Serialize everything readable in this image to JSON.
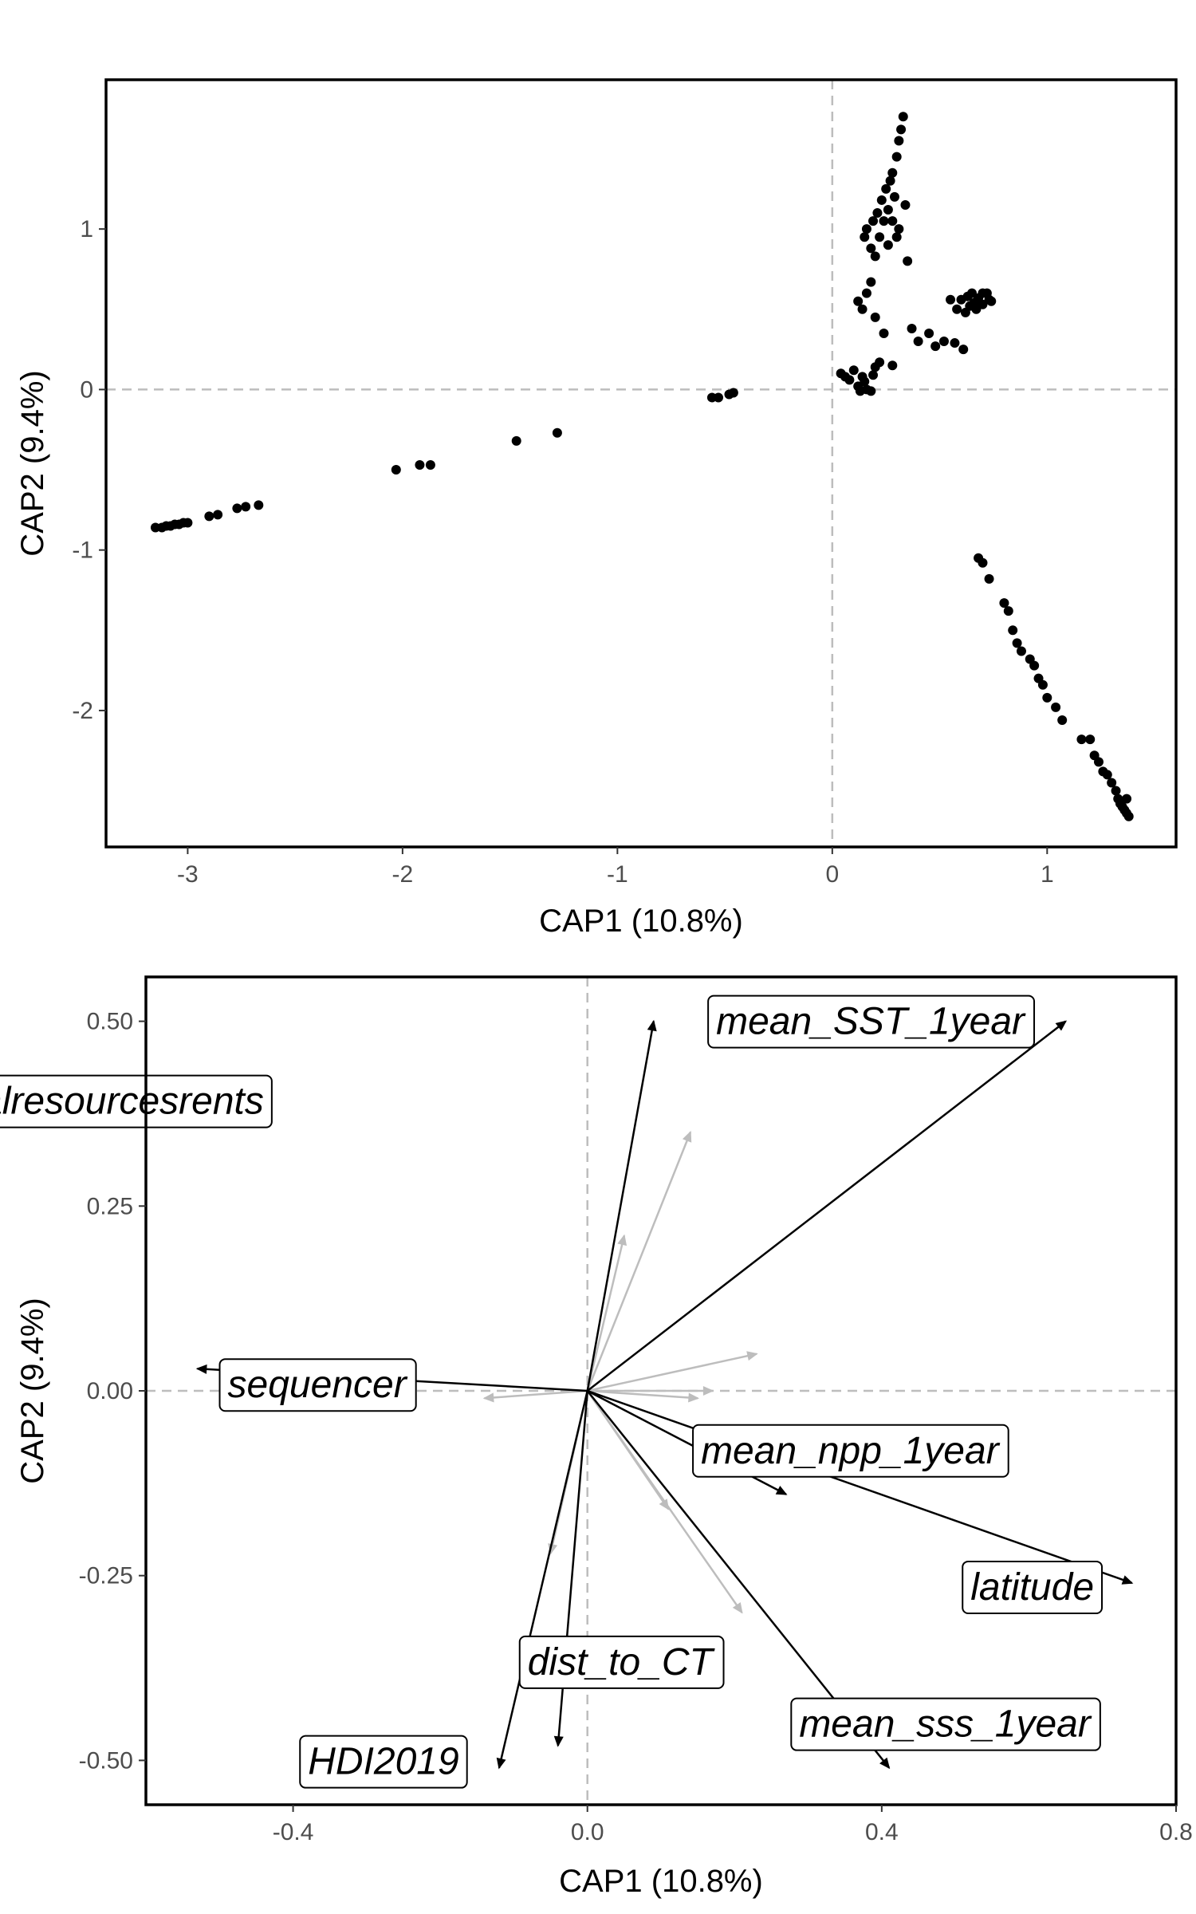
{
  "colors": {
    "points": "#000000",
    "panel_border": "#000000",
    "refline": "#bdbdbd",
    "label_bg": "#ffffff",
    "minor_arrow": "#bdbdbd",
    "major_arrow": "#000000",
    "tick_text": "#4d4d4d"
  },
  "chart_data": [
    {
      "type": "scatter",
      "xlabel": "CAP1 (10.8%)",
      "ylabel": "CAP2 (9.4%)",
      "xlim": [
        -3.38,
        1.6
      ],
      "ylim": [
        -2.85,
        1.93
      ],
      "xticks": [
        -3,
        -2,
        -1,
        0,
        1
      ],
      "yticks": [
        -2,
        -1,
        0,
        1
      ],
      "xtick_labels": [
        "-3",
        "-2",
        "-1",
        "0",
        "1"
      ],
      "ytick_labels": [
        "-2",
        "-1",
        "0",
        "1"
      ],
      "reference_lines": {
        "x": 0,
        "y": 0,
        "style": "dashed"
      },
      "grid": false,
      "points": [
        [
          -3.15,
          -0.86
        ],
        [
          -3.12,
          -0.86
        ],
        [
          -3.1,
          -0.85
        ],
        [
          -3.08,
          -0.85
        ],
        [
          -3.06,
          -0.84
        ],
        [
          -3.04,
          -0.84
        ],
        [
          -3.02,
          -0.83
        ],
        [
          -3.0,
          -0.83
        ],
        [
          -2.9,
          -0.79
        ],
        [
          -2.86,
          -0.78
        ],
        [
          -2.77,
          -0.74
        ],
        [
          -2.73,
          -0.73
        ],
        [
          -2.67,
          -0.72
        ],
        [
          -2.03,
          -0.5
        ],
        [
          -1.92,
          -0.47
        ],
        [
          -1.87,
          -0.47
        ],
        [
          -1.47,
          -0.32
        ],
        [
          -1.28,
          -0.27
        ],
        [
          -0.56,
          -0.05
        ],
        [
          -0.53,
          -0.05
        ],
        [
          -0.48,
          -0.03
        ],
        [
          -0.46,
          -0.02
        ],
        [
          0.04,
          0.1
        ],
        [
          0.06,
          0.08
        ],
        [
          0.08,
          0.06
        ],
        [
          0.1,
          0.12
        ],
        [
          0.12,
          0.02
        ],
        [
          0.13,
          -0.01
        ],
        [
          0.15,
          0.05
        ],
        [
          0.16,
          0.0
        ],
        [
          0.14,
          0.08
        ],
        [
          0.18,
          -0.01
        ],
        [
          0.2,
          0.14
        ],
        [
          0.22,
          0.17
        ],
        [
          0.19,
          0.09
        ],
        [
          0.12,
          0.55
        ],
        [
          0.14,
          0.5
        ],
        [
          0.16,
          0.6
        ],
        [
          0.18,
          0.67
        ],
        [
          0.2,
          0.45
        ],
        [
          0.24,
          0.35
        ],
        [
          0.28,
          0.15
        ],
        [
          0.15,
          0.95
        ],
        [
          0.16,
          1.0
        ],
        [
          0.18,
          0.88
        ],
        [
          0.19,
          1.05
        ],
        [
          0.2,
          0.83
        ],
        [
          0.21,
          1.1
        ],
        [
          0.22,
          0.95
        ],
        [
          0.23,
          1.18
        ],
        [
          0.24,
          1.05
        ],
        [
          0.25,
          1.25
        ],
        [
          0.26,
          1.12
        ],
        [
          0.27,
          1.3
        ],
        [
          0.28,
          1.35
        ],
        [
          0.29,
          1.2
        ],
        [
          0.3,
          1.45
        ],
        [
          0.31,
          1.55
        ],
        [
          0.32,
          1.62
        ],
        [
          0.33,
          1.7
        ],
        [
          0.3,
          0.95
        ],
        [
          0.28,
          1.05
        ],
        [
          0.26,
          0.9
        ],
        [
          0.34,
          1.15
        ],
        [
          0.35,
          0.8
        ],
        [
          0.31,
          1.0
        ],
        [
          0.37,
          0.38
        ],
        [
          0.4,
          0.3
        ],
        [
          0.45,
          0.35
        ],
        [
          0.48,
          0.27
        ],
        [
          0.52,
          0.3
        ],
        [
          0.57,
          0.29
        ],
        [
          0.61,
          0.25
        ],
        [
          0.55,
          0.56
        ],
        [
          0.58,
          0.5
        ],
        [
          0.6,
          0.56
        ],
        [
          0.62,
          0.48
        ],
        [
          0.63,
          0.58
        ],
        [
          0.64,
          0.52
        ],
        [
          0.65,
          0.6
        ],
        [
          0.66,
          0.54
        ],
        [
          0.67,
          0.5
        ],
        [
          0.68,
          0.57
        ],
        [
          0.7,
          0.53
        ],
        [
          0.72,
          0.6
        ],
        [
          0.73,
          0.56
        ],
        [
          0.74,
          0.55
        ],
        [
          0.7,
          0.6
        ],
        [
          0.68,
          -1.05
        ],
        [
          0.7,
          -1.08
        ],
        [
          0.73,
          -1.18
        ],
        [
          0.8,
          -1.33
        ],
        [
          0.82,
          -1.38
        ],
        [
          0.84,
          -1.5
        ],
        [
          0.86,
          -1.58
        ],
        [
          0.88,
          -1.63
        ],
        [
          0.92,
          -1.68
        ],
        [
          0.94,
          -1.72
        ],
        [
          0.96,
          -1.8
        ],
        [
          0.98,
          -1.84
        ],
        [
          1.0,
          -1.92
        ],
        [
          1.04,
          -1.98
        ],
        [
          1.07,
          -2.06
        ],
        [
          1.16,
          -2.18
        ],
        [
          1.2,
          -2.18
        ],
        [
          1.22,
          -2.28
        ],
        [
          1.24,
          -2.32
        ],
        [
          1.26,
          -2.38
        ],
        [
          1.28,
          -2.4
        ],
        [
          1.3,
          -2.45
        ],
        [
          1.32,
          -2.5
        ],
        [
          1.33,
          -2.55
        ],
        [
          1.34,
          -2.58
        ],
        [
          1.35,
          -2.6
        ],
        [
          1.36,
          -2.62
        ],
        [
          1.37,
          -2.64
        ],
        [
          1.38,
          -2.66
        ],
        [
          1.37,
          -2.55
        ]
      ]
    },
    {
      "type": "biplot",
      "xlabel": "CAP1 (10.8%)",
      "ylabel": "CAP2 (9.4%)",
      "xlim": [
        -0.6,
        0.8
      ],
      "ylim": [
        -0.56,
        0.56
      ],
      "xticks": [
        -0.4,
        0.0,
        0.4,
        0.8
      ],
      "yticks": [
        -0.5,
        -0.25,
        0.0,
        0.25,
        0.5
      ],
      "xtick_labels": [
        "-0.4",
        "0.0",
        "0.4",
        "0.8"
      ],
      "ytick_labels": [
        "-0.50",
        "-0.25",
        "0.00",
        "0.25",
        "0.50"
      ],
      "reference_lines": {
        "x": 0,
        "y": 0,
        "style": "dashed"
      },
      "grid": false,
      "major_vectors": [
        {
          "label": "mean_SST_1year",
          "x": 0.65,
          "y": 0.5
        },
        {
          "label": "Naturalresourcesrents",
          "x": 0.09,
          "y": 0.5
        },
        {
          "label": "sequencer",
          "x": -0.53,
          "y": 0.03
        },
        {
          "label": "mean_npp_1year",
          "x": 0.27,
          "y": -0.14
        },
        {
          "label": "latitude",
          "x": 0.74,
          "y": -0.26
        },
        {
          "label": "mean_sss_1year",
          "x": 0.41,
          "y": -0.51
        },
        {
          "label": "dist_to_CT",
          "x": -0.04,
          "y": -0.48
        },
        {
          "label": "HDI2019",
          "x": -0.12,
          "y": -0.51
        }
      ],
      "minor_vectors": [
        {
          "x": 0.14,
          "y": 0.35
        },
        {
          "x": 0.05,
          "y": 0.21
        },
        {
          "x": 0.23,
          "y": 0.05
        },
        {
          "x": 0.17,
          "y": 0.0
        },
        {
          "x": 0.15,
          "y": -0.01
        },
        {
          "x": -0.14,
          "y": -0.01
        },
        {
          "x": 0.21,
          "y": -0.3
        },
        {
          "x": 0.11,
          "y": -0.16
        },
        {
          "x": -0.05,
          "y": -0.22
        }
      ]
    }
  ]
}
